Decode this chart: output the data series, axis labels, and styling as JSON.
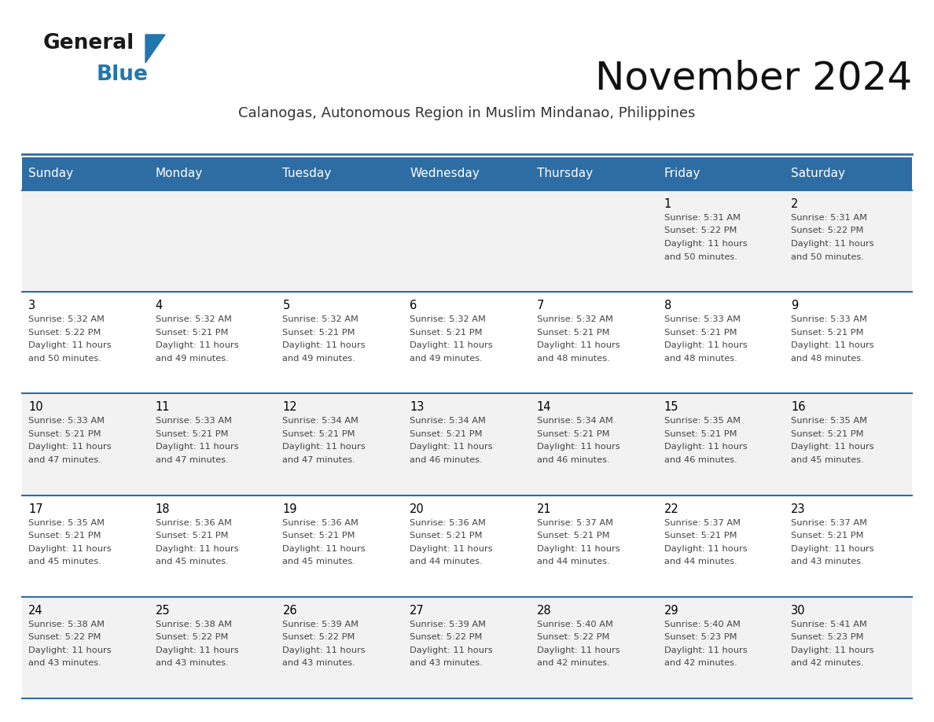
{
  "title": "November 2024",
  "subtitle": "Calanogas, Autonomous Region in Muslim Mindanao, Philippines",
  "days_of_week": [
    "Sunday",
    "Monday",
    "Tuesday",
    "Wednesday",
    "Thursday",
    "Friday",
    "Saturday"
  ],
  "header_bg": "#2E6DA4",
  "header_text_color": "#FFFFFF",
  "cell_bg_row0": "#F2F2F2",
  "cell_bg_row1": "#FFFFFF",
  "border_color": "#2E6DA4",
  "day_num_color": "#000000",
  "text_color": "#444444",
  "logo_general_color": "#1a1a1a",
  "logo_blue_color": "#2176AE",
  "calendar": [
    [
      null,
      null,
      null,
      null,
      null,
      1,
      2
    ],
    [
      3,
      4,
      5,
      6,
      7,
      8,
      9
    ],
    [
      10,
      11,
      12,
      13,
      14,
      15,
      16
    ],
    [
      17,
      18,
      19,
      20,
      21,
      22,
      23
    ],
    [
      24,
      25,
      26,
      27,
      28,
      29,
      30
    ]
  ],
  "sunrise": {
    "1": "5:31 AM",
    "2": "5:31 AM",
    "3": "5:32 AM",
    "4": "5:32 AM",
    "5": "5:32 AM",
    "6": "5:32 AM",
    "7": "5:32 AM",
    "8": "5:33 AM",
    "9": "5:33 AM",
    "10": "5:33 AM",
    "11": "5:33 AM",
    "12": "5:34 AM",
    "13": "5:34 AM",
    "14": "5:34 AM",
    "15": "5:35 AM",
    "16": "5:35 AM",
    "17": "5:35 AM",
    "18": "5:36 AM",
    "19": "5:36 AM",
    "20": "5:36 AM",
    "21": "5:37 AM",
    "22": "5:37 AM",
    "23": "5:37 AM",
    "24": "5:38 AM",
    "25": "5:38 AM",
    "26": "5:39 AM",
    "27": "5:39 AM",
    "28": "5:40 AM",
    "29": "5:40 AM",
    "30": "5:41 AM"
  },
  "sunset": {
    "1": "5:22 PM",
    "2": "5:22 PM",
    "3": "5:22 PM",
    "4": "5:21 PM",
    "5": "5:21 PM",
    "6": "5:21 PM",
    "7": "5:21 PM",
    "8": "5:21 PM",
    "9": "5:21 PM",
    "10": "5:21 PM",
    "11": "5:21 PM",
    "12": "5:21 PM",
    "13": "5:21 PM",
    "14": "5:21 PM",
    "15": "5:21 PM",
    "16": "5:21 PM",
    "17": "5:21 PM",
    "18": "5:21 PM",
    "19": "5:21 PM",
    "20": "5:21 PM",
    "21": "5:21 PM",
    "22": "5:21 PM",
    "23": "5:21 PM",
    "24": "5:22 PM",
    "25": "5:22 PM",
    "26": "5:22 PM",
    "27": "5:22 PM",
    "28": "5:22 PM",
    "29": "5:23 PM",
    "30": "5:23 PM"
  },
  "daylight_hours": {
    "1": "11 hours and 50 minutes.",
    "2": "11 hours and 50 minutes.",
    "3": "11 hours and 50 minutes.",
    "4": "11 hours and 49 minutes.",
    "5": "11 hours and 49 minutes.",
    "6": "11 hours and 49 minutes.",
    "7": "11 hours and 48 minutes.",
    "8": "11 hours and 48 minutes.",
    "9": "11 hours and 48 minutes.",
    "10": "11 hours and 47 minutes.",
    "11": "11 hours and 47 minutes.",
    "12": "11 hours and 47 minutes.",
    "13": "11 hours and 46 minutes.",
    "14": "11 hours and 46 minutes.",
    "15": "11 hours and 46 minutes.",
    "16": "11 hours and 45 minutes.",
    "17": "11 hours and 45 minutes.",
    "18": "11 hours and 45 minutes.",
    "19": "11 hours and 45 minutes.",
    "20": "11 hours and 44 minutes.",
    "21": "11 hours and 44 minutes.",
    "22": "11 hours and 44 minutes.",
    "23": "11 hours and 43 minutes.",
    "24": "11 hours and 43 minutes.",
    "25": "11 hours and 43 minutes.",
    "26": "11 hours and 43 minutes.",
    "27": "11 hours and 43 minutes.",
    "28": "11 hours and 42 minutes.",
    "29": "11 hours and 42 minutes.",
    "30": "11 hours and 42 minutes."
  }
}
